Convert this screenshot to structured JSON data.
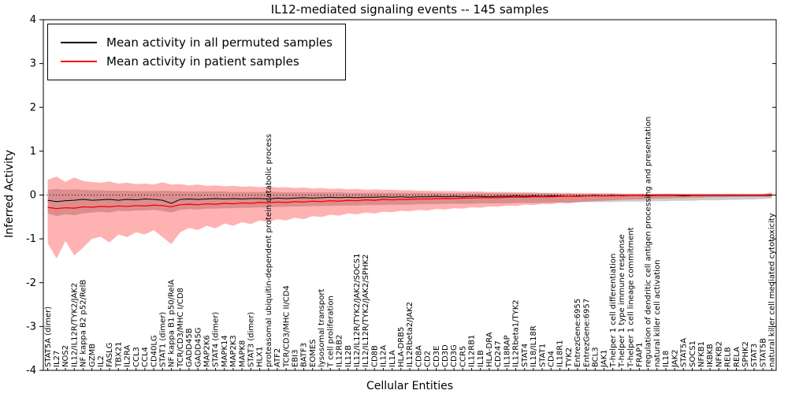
{
  "title": "IL12-mediated signaling events -- 145 samples",
  "axes": {
    "ylabel": "Inferred Activity",
    "xlabel": "Cellular Entities",
    "yticks": [
      -4,
      -3,
      -2,
      -1,
      0,
      1,
      2,
      3,
      4
    ]
  },
  "legend": {
    "permuted_label": "Mean activity in all permuted samples",
    "patient_label": "Mean activity in patient samples"
  },
  "colors": {
    "permuted_line": "#000000",
    "patient_line": "#ff0000",
    "permuted_band": "rgba(128,128,128,0.40)",
    "patient_band": "rgba(255,0,0,0.30)",
    "axis": "#000000"
  },
  "chart_data": {
    "type": "line",
    "title": "IL12-mediated signaling events -- 145 samples",
    "xlabel": "Cellular Entities",
    "ylabel": "Inferred Activity",
    "ylim": [
      -4,
      4
    ],
    "zero_line": true,
    "legend_position": "upper left",
    "categories": [
      "STAT5A (dimer)",
      "IL27",
      "NOS2",
      "IL12/IL12R/TYK2/JAK2",
      "NF kappa B2 p52/RelB",
      "GZMB",
      "IL2",
      "FASLG",
      "TBX21",
      "IL2RA",
      "CCL3",
      "CCL4",
      "CD40LG",
      "STAT1 (dimer)",
      "NF kappa B1 p50/RelA",
      "TCR/CD3/MHC I/CD8",
      "GADD45B",
      "GADD45G",
      "MAP2K6",
      "STAT4 (dimer)",
      "MAPK14",
      "MAP2K3",
      "MAPK8",
      "STAT3 (dimer)",
      "HLX1",
      "proteasomal ubiquitin-dependent protein catabolic process",
      "ATF2",
      "TCR/CD3/MHC II/CD4",
      "EBI3",
      "BATF3",
      "EOMES",
      "lysosomal transport",
      "T cell proliferation",
      "IL12RB2",
      "IL12B",
      "IL12/IL12R/TYK2/JAK2/SOCS1",
      "IL12/IL12R/TYK2/JAK2/SPHK2",
      "CD8B",
      "IL12A",
      "IL1A",
      "HLA-DRB5",
      "IL12Rbeta2/JAK2",
      "CD8A",
      "CD2",
      "CD3E",
      "CD3D",
      "CD3G",
      "CCR5",
      "IL12RB1",
      "IL1B",
      "HLA-DRA",
      "CD247",
      "IL18RAP",
      "IL12Rbeta1/TYK2",
      "STAT4",
      "IL18/IL18R",
      "STAT1",
      "CD4",
      "IL18R1",
      "TYK2",
      "EntrezGene:6955",
      "EntrezGene:6957",
      "BCL3",
      "JAK1",
      "T-helper 1 cell differentiation",
      "T-helper 1 type immune response",
      "T-helper 1 cell lineage commitment",
      "FRAP1",
      "regulation of dendritic cell antigen processing and presentation",
      "natural killer cell activation",
      "IL18",
      "JAK2",
      "STAT5A",
      "SOCS1",
      "NFKB1",
      "IKBKB",
      "NFKB2",
      "RELB",
      "RELA",
      "SPHK2",
      "STAT3",
      "STAT5B",
      "natural killer cell mediated cytotoxicity"
    ],
    "series": [
      {
        "name": "Mean activity in all permuted samples",
        "color": "#000000",
        "values": [
          -0.12,
          -0.15,
          -0.13,
          -0.12,
          -0.1,
          -0.12,
          -0.11,
          -0.1,
          -0.12,
          -0.1,
          -0.11,
          -0.09,
          -0.1,
          -0.12,
          -0.19,
          -0.1,
          -0.09,
          -0.1,
          -0.09,
          -0.08,
          -0.09,
          -0.08,
          -0.09,
          -0.08,
          -0.08,
          -0.09,
          -0.07,
          -0.08,
          -0.07,
          -0.06,
          -0.07,
          -0.06,
          -0.05,
          -0.06,
          -0.05,
          -0.06,
          -0.05,
          -0.05,
          -0.04,
          -0.05,
          -0.04,
          -0.05,
          -0.04,
          -0.04,
          -0.03,
          -0.04,
          -0.03,
          -0.04,
          -0.03,
          -0.03,
          -0.04,
          -0.03,
          -0.03,
          -0.02,
          -0.03,
          -0.02,
          -0.03,
          -0.02,
          -0.02,
          -0.03,
          -0.02,
          -0.02,
          -0.01,
          -0.02,
          -0.01,
          -0.02,
          -0.01,
          -0.01,
          -0.02,
          -0.01,
          -0.01,
          -0.01,
          -0.02,
          -0.01,
          -0.01,
          -0.01,
          -0.01,
          -0.01,
          -0.01,
          -0.01,
          -0.01,
          -0.01,
          -0.01
        ]
      },
      {
        "name": "Mean activity in patient samples",
        "color": "#ff0000",
        "values": [
          -0.28,
          -0.31,
          -0.29,
          -0.3,
          -0.27,
          -0.28,
          -0.26,
          -0.27,
          -0.25,
          -0.26,
          -0.24,
          -0.25,
          -0.23,
          -0.24,
          -0.27,
          -0.22,
          -0.21,
          -0.22,
          -0.2,
          -0.21,
          -0.19,
          -0.2,
          -0.18,
          -0.19,
          -0.17,
          -0.18,
          -0.16,
          -0.17,
          -0.15,
          -0.16,
          -0.14,
          -0.15,
          -0.13,
          -0.14,
          -0.12,
          -0.13,
          -0.11,
          -0.12,
          -0.1,
          -0.11,
          -0.1,
          -0.1,
          -0.09,
          -0.09,
          -0.08,
          -0.08,
          -0.08,
          -0.07,
          -0.07,
          -0.06,
          -0.06,
          -0.06,
          -0.05,
          -0.05,
          -0.05,
          -0.04,
          -0.04,
          -0.04,
          -0.03,
          -0.03,
          -0.03,
          -0.02,
          -0.02,
          -0.02,
          -0.02,
          -0.01,
          -0.01,
          -0.01,
          -0.01,
          0.0,
          0.0,
          0.0,
          0.0,
          0.0,
          0.0,
          0.0,
          0.0,
          0.0,
          0.0,
          0.0,
          0.0,
          0.0,
          0.01
        ]
      }
    ],
    "bands": [
      {
        "name": "permuted samples range",
        "color": "rgba(128,128,128,0.40)",
        "upper": [
          0.12,
          0.14,
          0.12,
          0.13,
          0.12,
          0.11,
          0.11,
          0.1,
          0.1,
          0.1,
          0.09,
          0.09,
          0.09,
          0.1,
          0.09,
          0.09,
          0.08,
          0.08,
          0.08,
          0.08,
          0.08,
          0.07,
          0.07,
          0.07,
          0.07,
          0.07,
          0.07,
          0.06,
          0.06,
          0.06,
          0.06,
          0.06,
          0.06,
          0.06,
          0.05,
          0.05,
          0.05,
          0.05,
          0.05,
          0.05,
          0.05,
          0.05,
          0.05,
          0.05,
          0.05,
          0.04,
          0.04,
          0.04,
          0.04,
          0.04,
          0.04,
          0.04,
          0.04,
          0.04,
          0.04,
          0.04,
          0.04,
          0.04,
          0.03,
          0.03,
          0.03,
          0.03,
          0.03,
          0.03,
          0.03,
          0.03,
          0.03,
          0.03,
          0.03,
          0.03,
          0.03,
          0.03,
          0.03,
          0.03,
          0.03,
          0.03,
          0.03,
          0.03,
          0.03,
          0.03,
          0.03,
          0.03,
          0.03
        ],
        "lower": [
          -0.42,
          -0.48,
          -0.44,
          -0.46,
          -0.42,
          -0.4,
          -0.38,
          -0.4,
          -0.36,
          -0.37,
          -0.35,
          -0.35,
          -0.34,
          -0.36,
          -0.4,
          -0.34,
          -0.32,
          -0.33,
          -0.31,
          -0.31,
          -0.3,
          -0.3,
          -0.29,
          -0.29,
          -0.28,
          -0.28,
          -0.27,
          -0.27,
          -0.26,
          -0.26,
          -0.25,
          -0.25,
          -0.25,
          -0.24,
          -0.24,
          -0.24,
          -0.23,
          -0.23,
          -0.23,
          -0.22,
          -0.22,
          -0.22,
          -0.21,
          -0.21,
          -0.21,
          -0.2,
          -0.2,
          -0.2,
          -0.2,
          -0.19,
          -0.19,
          -0.19,
          -0.19,
          -0.18,
          -0.18,
          -0.18,
          -0.18,
          -0.17,
          -0.17,
          -0.17,
          -0.17,
          -0.16,
          -0.16,
          -0.16,
          -0.16,
          -0.15,
          -0.15,
          -0.15,
          -0.14,
          -0.14,
          -0.14,
          -0.13,
          -0.13,
          -0.13,
          -0.12,
          -0.12,
          -0.12,
          -0.11,
          -0.11,
          -0.1,
          -0.1,
          -0.09,
          -0.08
        ]
      },
      {
        "name": "patient samples range",
        "color": "rgba(255,0,0,0.30)",
        "upper": [
          0.35,
          0.42,
          0.3,
          0.4,
          0.32,
          0.3,
          0.28,
          0.31,
          0.26,
          0.28,
          0.25,
          0.26,
          0.24,
          0.29,
          0.24,
          0.25,
          0.22,
          0.24,
          0.21,
          0.22,
          0.2,
          0.21,
          0.19,
          0.2,
          0.18,
          0.19,
          0.17,
          0.18,
          0.16,
          0.17,
          0.15,
          0.16,
          0.14,
          0.15,
          0.13,
          0.14,
          0.12,
          0.13,
          0.12,
          0.12,
          0.11,
          0.11,
          0.1,
          0.1,
          0.09,
          0.09,
          0.09,
          0.08,
          0.08,
          0.08,
          0.07,
          0.07,
          0.07,
          0.06,
          0.06,
          0.06,
          0.05,
          0.05,
          0.05,
          0.05,
          0.04,
          0.04,
          0.04,
          0.04,
          0.04,
          0.03,
          0.03,
          0.03,
          0.03,
          0.03,
          0.03,
          0.03,
          0.02,
          0.02,
          0.02,
          0.02,
          0.02,
          0.02,
          0.02,
          0.02,
          0.02,
          0.02,
          0.06
        ],
        "lower": [
          -1.1,
          -1.45,
          -1.05,
          -1.38,
          -1.2,
          -1.0,
          -0.95,
          -1.08,
          -0.9,
          -0.96,
          -0.85,
          -0.9,
          -0.8,
          -0.96,
          -1.12,
          -0.85,
          -0.75,
          -0.8,
          -0.7,
          -0.76,
          -0.65,
          -0.7,
          -0.62,
          -0.66,
          -0.58,
          -0.62,
          -0.55,
          -0.58,
          -0.52,
          -0.55,
          -0.48,
          -0.5,
          -0.45,
          -0.47,
          -0.42,
          -0.44,
          -0.4,
          -0.42,
          -0.38,
          -0.39,
          -0.36,
          -0.37,
          -0.34,
          -0.35,
          -0.32,
          -0.33,
          -0.3,
          -0.31,
          -0.28,
          -0.29,
          -0.26,
          -0.27,
          -0.24,
          -0.25,
          -0.22,
          -0.23,
          -0.2,
          -0.21,
          -0.18,
          -0.19,
          -0.16,
          -0.15,
          -0.14,
          -0.13,
          -0.12,
          -0.11,
          -0.1,
          -0.1,
          -0.09,
          -0.08,
          -0.08,
          -0.07,
          -0.07,
          -0.06,
          -0.06,
          -0.05,
          -0.05,
          -0.05,
          -0.04,
          -0.04,
          -0.04,
          -0.04,
          -0.04
        ]
      }
    ]
  }
}
